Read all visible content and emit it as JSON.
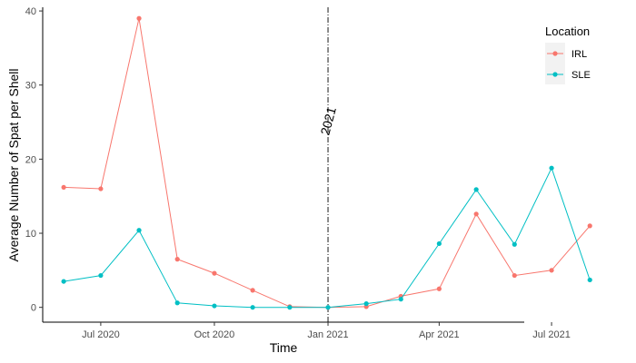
{
  "chart_data": {
    "type": "line",
    "xlabel": "Time",
    "ylabel": "Average Number of Spat per Shell",
    "x_axis_kind": "date",
    "xlim": [
      "2020-05-15",
      "2021-08-31"
    ],
    "ylim": [
      -2,
      40.5
    ],
    "y_ticks": [
      0,
      10,
      20,
      30,
      40
    ],
    "x_ticks": [
      {
        "date": "2020-07-01",
        "label": "Jul 2020"
      },
      {
        "date": "2020-10-01",
        "label": "Oct 2020"
      },
      {
        "date": "2021-01-01",
        "label": "Jan 2021"
      },
      {
        "date": "2021-04-01",
        "label": "Apr 2021"
      },
      {
        "date": "2021-07-01",
        "label": "Jul 2021"
      }
    ],
    "grid": false,
    "legend": {
      "title": "Location",
      "position": "right-top"
    },
    "annotation": {
      "text": "2021",
      "x": "2021-01-01",
      "y": 25,
      "line_style": "dashdot",
      "rotation": -75
    },
    "series": [
      {
        "name": "IRL",
        "color": "#F8766D",
        "points": [
          {
            "x": "2020-06-01",
            "y": 16.2
          },
          {
            "x": "2020-07-01",
            "y": 16.0
          },
          {
            "x": "2020-08-01",
            "y": 39.0
          },
          {
            "x": "2020-09-01",
            "y": 6.5
          },
          {
            "x": "2020-10-01",
            "y": 4.6
          },
          {
            "x": "2020-11-01",
            "y": 2.3
          },
          {
            "x": "2020-12-01",
            "y": 0.1
          },
          {
            "x": "2021-01-01",
            "y": 0.0
          },
          {
            "x": "2021-02-01",
            "y": 0.1
          },
          {
            "x": "2021-03-01",
            "y": 1.5
          },
          {
            "x": "2021-04-01",
            "y": 2.5
          },
          {
            "x": "2021-05-01",
            "y": 12.6
          },
          {
            "x": "2021-06-01",
            "y": 4.3
          },
          {
            "x": "2021-07-01",
            "y": 5.0
          },
          {
            "x": "2021-08-01",
            "y": 11.0
          }
        ]
      },
      {
        "name": "SLE",
        "color": "#00BFC4",
        "points": [
          {
            "x": "2020-06-01",
            "y": 3.5
          },
          {
            "x": "2020-07-01",
            "y": 4.3
          },
          {
            "x": "2020-08-01",
            "y": 10.4
          },
          {
            "x": "2020-09-01",
            "y": 0.6
          },
          {
            "x": "2020-10-01",
            "y": 0.2
          },
          {
            "x": "2020-11-01",
            "y": 0.0
          },
          {
            "x": "2020-12-01",
            "y": 0.0
          },
          {
            "x": "2021-01-01",
            "y": 0.0
          },
          {
            "x": "2021-02-01",
            "y": 0.5
          },
          {
            "x": "2021-03-01",
            "y": 1.1
          },
          {
            "x": "2021-04-01",
            "y": 8.6
          },
          {
            "x": "2021-05-01",
            "y": 15.9
          },
          {
            "x": "2021-06-01",
            "y": 8.5
          },
          {
            "x": "2021-07-01",
            "y": 18.8
          },
          {
            "x": "2021-08-01",
            "y": 3.7
          }
        ]
      }
    ]
  }
}
